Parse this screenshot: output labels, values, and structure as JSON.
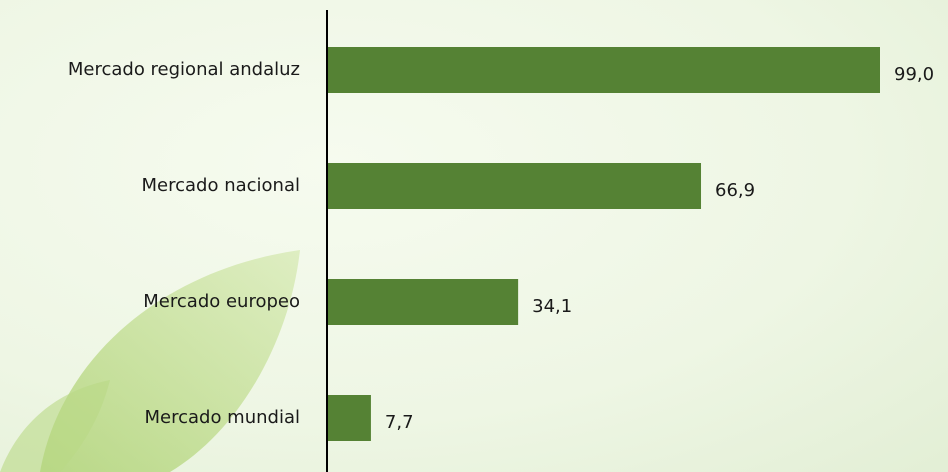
{
  "chart_data": {
    "type": "hbar",
    "categories": [
      "Mercado regional andaluz",
      "Mercado nacional",
      "Mercado europeo",
      "Mercado mundial"
    ],
    "values": [
      99.0,
      66.9,
      34.1,
      7.7
    ],
    "value_labels": [
      "99,0",
      "66,9",
      "34,1",
      "7,7"
    ],
    "color": "#558234"
  }
}
